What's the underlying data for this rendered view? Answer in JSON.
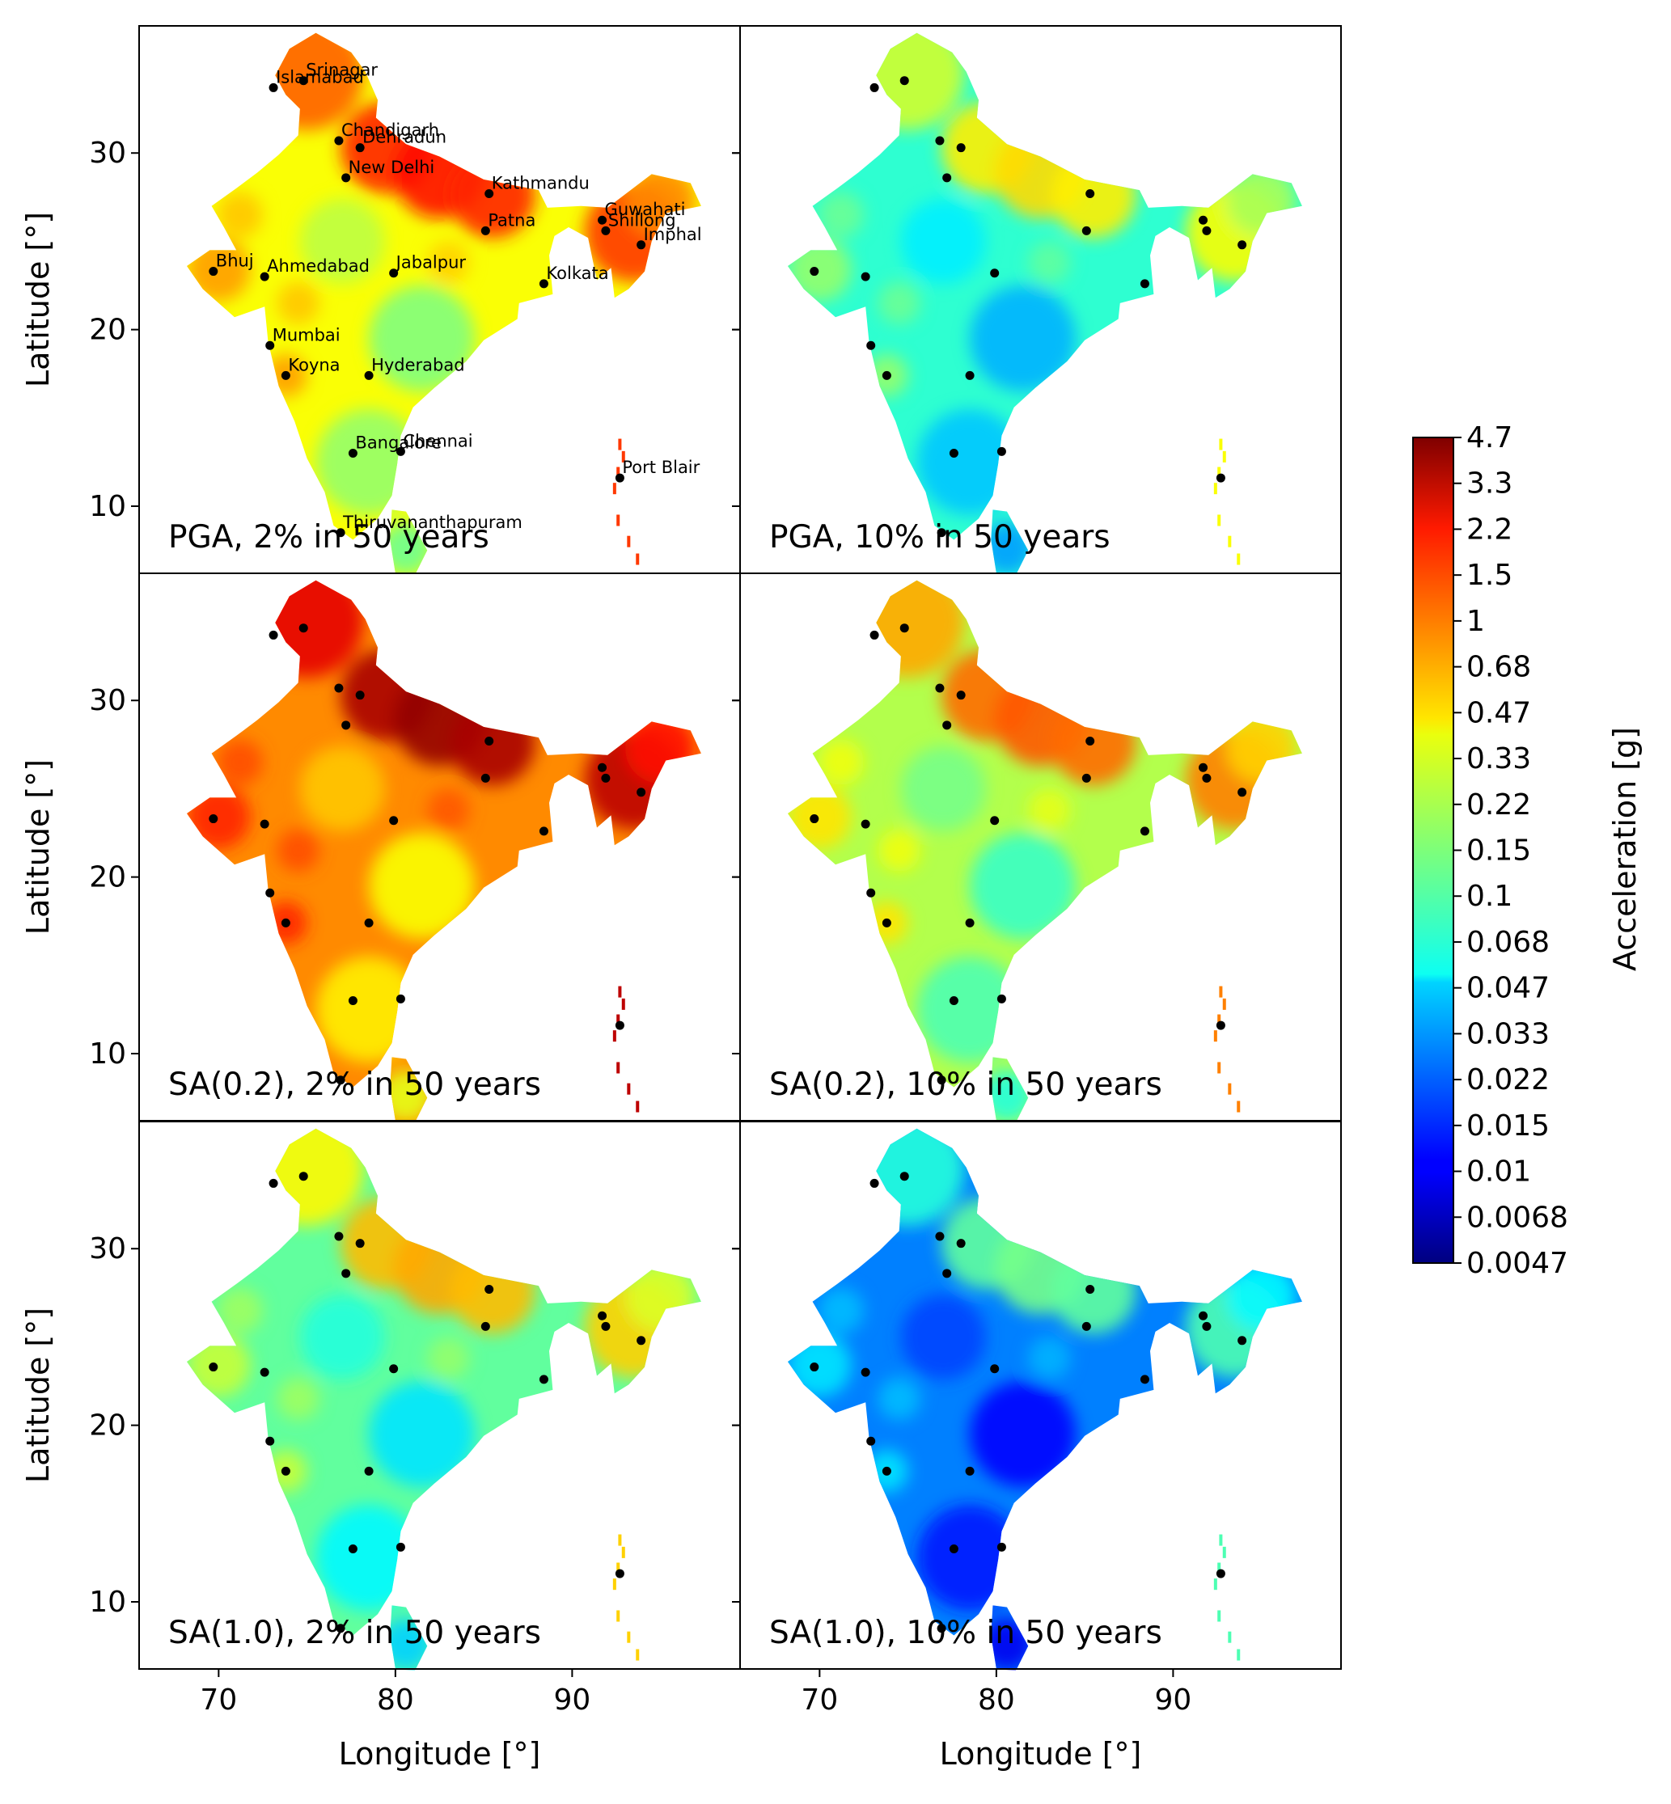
{
  "figure": {
    "panels": [
      {
        "id": "pga-2",
        "label": "PGA, 2% in 50 years",
        "level": 0.62,
        "row": 0,
        "col": 0,
        "show_city_labels": true
      },
      {
        "id": "pga-10",
        "label": "PGA, 10% in 50 years",
        "level": 0.42,
        "row": 0,
        "col": 1,
        "show_city_labels": false
      },
      {
        "id": "sa02-2",
        "label": "SA(0.2), 2% in 50 years",
        "level": 0.74,
        "row": 1,
        "col": 0,
        "show_city_labels": false
      },
      {
        "id": "sa02-10",
        "label": "SA(0.2), 10% in 50 years",
        "level": 0.55,
        "row": 1,
        "col": 1,
        "show_city_labels": false
      },
      {
        "id": "sa10-2",
        "label": "SA(1.0), 2% in 50 years",
        "level": 0.47,
        "row": 2,
        "col": 0,
        "show_city_labels": false
      },
      {
        "id": "sa10-10",
        "label": "SA(1.0), 10% in 50 years",
        "level": 0.25,
        "row": 2,
        "col": 1,
        "show_city_labels": false
      }
    ],
    "x_axis": {
      "title": "Longitude [°]",
      "ticks": [
        70,
        80,
        90
      ],
      "range": [
        65.5,
        99.5
      ]
    },
    "y_axis": {
      "title": "Latitude [°]",
      "ticks": [
        10,
        20,
        30
      ],
      "range": [
        6.2,
        37.2
      ]
    },
    "colorbar": {
      "title": "Acceleration [g]",
      "colormap": "jet",
      "scale": "log",
      "tick_labels": [
        "0.0047",
        "0.0068",
        "0.01",
        "0.015",
        "0.022",
        "0.033",
        "0.047",
        "0.068",
        "0.1",
        "0.15",
        "0.22",
        "0.33",
        "0.47",
        "0.68",
        "1",
        "1.5",
        "2.2",
        "3.3",
        "4.7"
      ]
    },
    "cities": [
      {
        "name": "Srinagar",
        "lon": 74.8,
        "lat": 34.1
      },
      {
        "name": "Islamabad",
        "lon": 73.1,
        "lat": 33.7
      },
      {
        "name": "Chandigarh",
        "lon": 76.8,
        "lat": 30.7
      },
      {
        "name": "Dehradun",
        "lon": 78.0,
        "lat": 30.3
      },
      {
        "name": "New Delhi",
        "lon": 77.2,
        "lat": 28.6
      },
      {
        "name": "Kathmandu",
        "lon": 85.3,
        "lat": 27.7
      },
      {
        "name": "Patna",
        "lon": 85.1,
        "lat": 25.6
      },
      {
        "name": "Guwahati",
        "lon": 91.7,
        "lat": 26.2
      },
      {
        "name": "Shillong",
        "lon": 91.9,
        "lat": 25.6
      },
      {
        "name": "Imphal",
        "lon": 93.9,
        "lat": 24.8
      },
      {
        "name": "Bhuj",
        "lon": 69.7,
        "lat": 23.3
      },
      {
        "name": "Ahmedabad",
        "lon": 72.6,
        "lat": 23.0
      },
      {
        "name": "Jabalpur",
        "lon": 79.9,
        "lat": 23.2
      },
      {
        "name": "Kolkata",
        "lon": 88.4,
        "lat": 22.6
      },
      {
        "name": "Mumbai",
        "lon": 72.9,
        "lat": 19.1
      },
      {
        "name": "Koyna",
        "lon": 73.8,
        "lat": 17.4
      },
      {
        "name": "Hyderabad",
        "lon": 78.5,
        "lat": 17.4
      },
      {
        "name": "Bangalore",
        "lon": 77.6,
        "lat": 13.0
      },
      {
        "name": "Chennai",
        "lon": 80.3,
        "lat": 13.1
      },
      {
        "name": "Port Blair",
        "lon": 92.7,
        "lat": 11.6
      },
      {
        "name": "Thiruvananthapuram",
        "lon": 76.9,
        "lat": 8.5
      }
    ]
  }
}
